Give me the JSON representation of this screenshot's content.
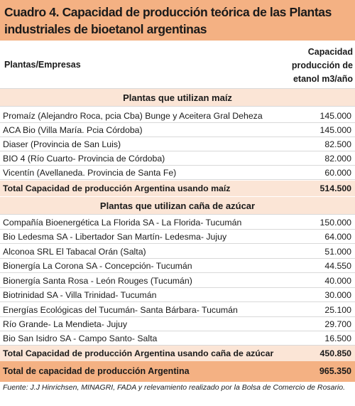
{
  "title": {
    "line1": "Cuadro 4. Capacidad de producción teórica de las Plantas",
    "line2": "industriales de bioetanol argentinas"
  },
  "header": {
    "col1": "Plantas/Empresas",
    "col2_line1": "Capacidad",
    "col2_line2": "producción de",
    "col2_line3": "etanol m3/año"
  },
  "section_maiz": {
    "heading": "Plantas que utilizan maíz",
    "rows": [
      {
        "name": "Promaíz (Alejandro Roca, pcia Cba) Bunge y Aceitera Gral Deheza",
        "value": "145.000"
      },
      {
        "name": "ACA Bio (Villa María. Pcia Córdoba)",
        "value": "145.000"
      },
      {
        "name": "Diaser (Provincia de San Luis)",
        "value": "82.500"
      },
      {
        "name": "BIO 4 (Río Cuarto- Provincia de Córdoba)",
        "value": "82.000"
      },
      {
        "name": "Vicentín (Avellaneda. Provincia de Santa Fe)",
        "value": "60.000"
      }
    ],
    "total_label": "Total Capacidad de producción Argentina usando maíz",
    "total_value": "514.500"
  },
  "section_cana": {
    "heading": "Plantas que utilizan caña de azúcar",
    "rows": [
      {
        "name": "Compañía Bioenergética La Florida SA - La Florida- Tucumán",
        "value": "150.000"
      },
      {
        "name": "Bio Ledesma SA - Libertador San Martín- Ledesma- Jujuy",
        "value": "64.000"
      },
      {
        "name": "Alconoa SRL El Tabacal Orán (Salta)",
        "value": "51.000"
      },
      {
        "name": "Bionergía La Corona SA - Concepción- Tucumán",
        "value": "44.550"
      },
      {
        "name": "Bionergía Santa Rosa - León Rouges (Tucumán)",
        "value": "40.000"
      },
      {
        "name": "Biotrinidad SA - Villa Trinidad- Tucumán",
        "value": "30.000"
      },
      {
        "name": "Energías Ecológicas del Tucumán- Santa Bárbara- Tucumán",
        "value": "25.100"
      },
      {
        "name": "Río Grande- La Mendieta- Jujuy",
        "value": "29.700"
      },
      {
        "name": "Bio San Isidro SA - Campo Santo- Salta",
        "value": "16.500"
      }
    ],
    "total_label": "Total Capacidad de producción Argentina usando caña de azúcar",
    "total_value": "450.850"
  },
  "grand_total": {
    "label": "Total de capacidad de producción Argentina",
    "value": "965.350"
  },
  "source": "Fuente: J.J Hinrichsen, MINAGRI, FADA y relevamiento realizado por la Bolsa de Comercio de Rosario.",
  "colors": {
    "title_bg": "#f4b183",
    "section_bg": "#fbe5d6",
    "grid_line": "#d9d9d9"
  }
}
